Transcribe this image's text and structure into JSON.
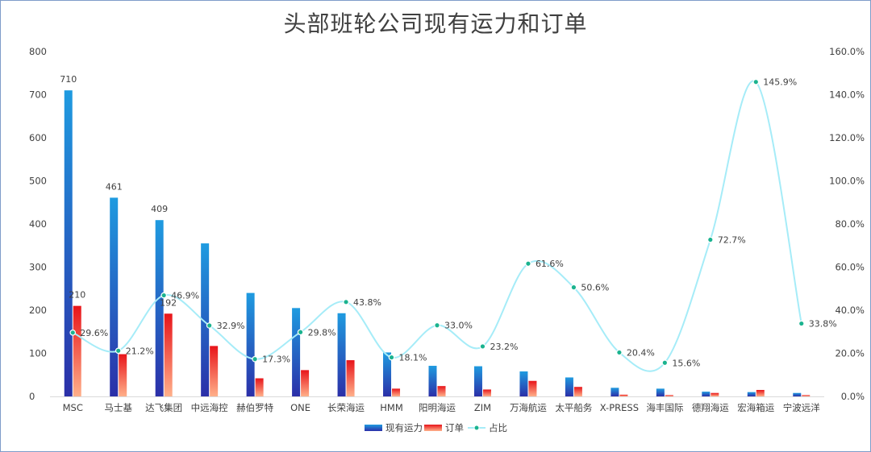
{
  "chart_data": {
    "type": "bar",
    "title": "头部班轮公司现有运力和订单",
    "categories": [
      "MSC",
      "马士基",
      "达飞集团",
      "中远海控",
      "赫伯罗特",
      "ONE",
      "长荣海运",
      "HMM",
      "阳明海运",
      "ZIM",
      "万海航运",
      "太平船务",
      "X-PRESS",
      "海丰国际",
      "德翔海运",
      "宏海箱运",
      "宁波远洋"
    ],
    "series": [
      {
        "name": "现有运力",
        "axis": "left",
        "kind": "bar",
        "values": [
          710,
          461,
          409,
          355,
          240,
          205,
          193,
          102,
          71,
          70,
          58,
          44,
          20,
          18,
          11,
          10,
          8
        ]
      },
      {
        "name": "订单",
        "axis": "left",
        "kind": "bar",
        "values": [
          210,
          98,
          192,
          117,
          42,
          61,
          84,
          18,
          24,
          16,
          36,
          22,
          4,
          3,
          8,
          15,
          3
        ]
      },
      {
        "name": "占比",
        "axis": "right",
        "kind": "line",
        "values": [
          29.6,
          21.2,
          46.9,
          32.9,
          17.3,
          29.8,
          43.8,
          18.1,
          33.0,
          23.2,
          61.6,
          50.6,
          20.4,
          15.6,
          72.7,
          145.9,
          33.8
        ],
        "labels": [
          "29.6%",
          "21.2%",
          "46.9%",
          "32.9%",
          "17.3%",
          "29.8%",
          "43.8%",
          "18.1%",
          "33.0%",
          "23.2%",
          "61.6%",
          "50.6%",
          "20.4%",
          "15.6%",
          "72.7%",
          "145.9%",
          "33.8%"
        ]
      }
    ],
    "bar_value_labels": {
      "现有运力": {
        "0": "710",
        "1": "461",
        "2": "409"
      },
      "订单": {
        "0": "210",
        "2": "192"
      }
    },
    "left_axis": {
      "min": 0,
      "max": 800,
      "step": 100,
      "ticks": [
        "0",
        "100",
        "200",
        "300",
        "400",
        "500",
        "600",
        "700",
        "800"
      ]
    },
    "right_axis": {
      "min": 0,
      "max": 160,
      "step": 20,
      "ticks": [
        "0.0%",
        "20.0%",
        "40.0%",
        "60.0%",
        "80.0%",
        "100.0%",
        "120.0%",
        "140.0%",
        "160.0%"
      ]
    },
    "legend": {
      "position": "bottom",
      "items": [
        "现有运力",
        "订单",
        "占比"
      ]
    },
    "colors": {
      "bar1_top": "#1f9be0",
      "bar1_bottom": "#2b2fa8",
      "bar2_top": "#e8141a",
      "bar2_bottom": "#ffb08a",
      "line": "#a6ecf8",
      "marker": "#1ab38f",
      "axis": "#d9d9d9"
    }
  }
}
